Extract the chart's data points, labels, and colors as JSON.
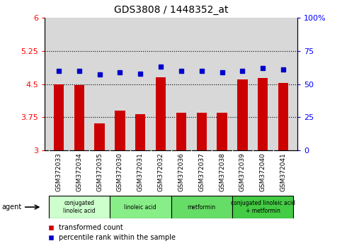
{
  "title": "GDS3808 / 1448352_at",
  "samples": [
    "GSM372033",
    "GSM372034",
    "GSM372035",
    "GSM372030",
    "GSM372031",
    "GSM372032",
    "GSM372036",
    "GSM372037",
    "GSM372038",
    "GSM372039",
    "GSM372040",
    "GSM372041"
  ],
  "bar_values": [
    4.5,
    4.47,
    3.62,
    3.9,
    3.82,
    4.65,
    3.86,
    3.85,
    3.86,
    4.6,
    4.63,
    4.53
  ],
  "dot_values": [
    60,
    60,
    57,
    59,
    58,
    63,
    60,
    60,
    59,
    60,
    62,
    61
  ],
  "ylim_left": [
    3,
    6
  ],
  "ylim_right": [
    0,
    100
  ],
  "yticks_left": [
    3,
    3.75,
    4.5,
    5.25,
    6
  ],
  "yticks_right": [
    0,
    25,
    50,
    75,
    100
  ],
  "ytick_labels_left": [
    "3",
    "3.75",
    "4.5",
    "5.25",
    "6"
  ],
  "ytick_labels_right": [
    "0",
    "25",
    "50",
    "75",
    "100%"
  ],
  "bar_color": "#cc0000",
  "dot_color": "#0000cc",
  "bg_color": "#d8d8d8",
  "plot_bg": "#ffffff",
  "agent_groups": [
    {
      "label": "conjugated\nlinoleic acid",
      "start": 0,
      "end": 3,
      "color": "#ccffcc"
    },
    {
      "label": "linoleic acid",
      "start": 3,
      "end": 6,
      "color": "#88ee88"
    },
    {
      "label": "metformin",
      "start": 6,
      "end": 9,
      "color": "#66dd66"
    },
    {
      "label": "conjugated linoleic acid\n+ metformin",
      "start": 9,
      "end": 12,
      "color": "#44cc44"
    }
  ],
  "hlines": [
    3.75,
    4.5,
    5.25
  ],
  "legend_red": "transformed count",
  "legend_blue": "percentile rank within the sample",
  "bar_width": 0.5,
  "figsize": [
    4.83,
    3.54
  ],
  "dpi": 100
}
